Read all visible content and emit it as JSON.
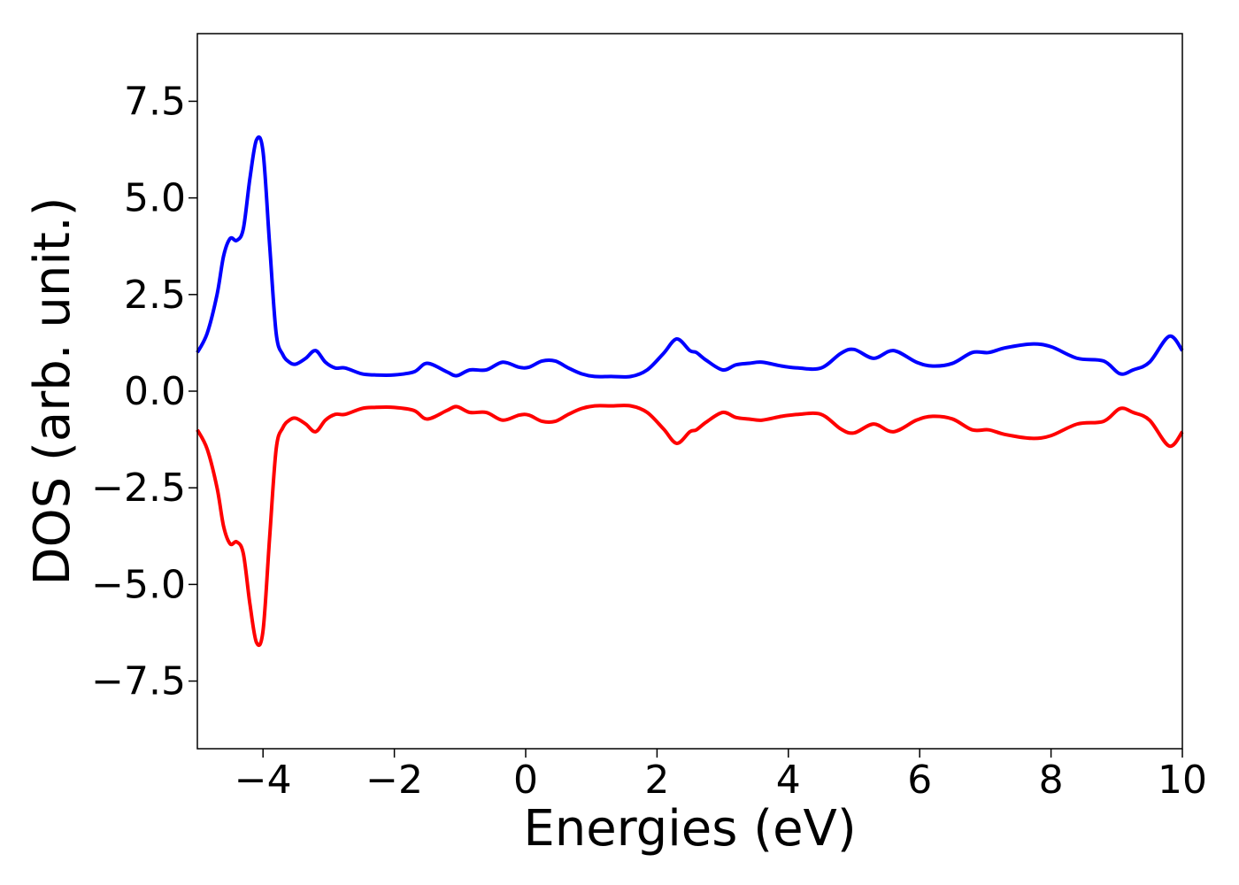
{
  "chart_data": {
    "type": "line",
    "title": "",
    "xlabel": "Energies (eV)",
    "ylabel": "DOS (arb. unit.)",
    "xlim": [
      -5,
      10
    ],
    "ylim": [
      -9.25,
      9.25
    ],
    "xticks": [
      -4,
      -2,
      0,
      2,
      4,
      6,
      8,
      10
    ],
    "xtick_labels": [
      "−4",
      "−2",
      "0",
      "2",
      "4",
      "6",
      "8",
      "10"
    ],
    "yticks": [
      7.5,
      5.0,
      2.5,
      0.0,
      -2.5,
      -5.0,
      -7.5
    ],
    "ytick_labels": [
      "7.5",
      "5.0",
      "2.5",
      "0.0",
      "−2.5",
      "−5.0",
      "−7.5"
    ],
    "grid": false,
    "legend": "none",
    "series": [
      {
        "color": "#0000ff",
        "x": [
          -5.0,
          -4.85,
          -4.7,
          -4.6,
          -4.5,
          -4.4,
          -4.3,
          -4.2,
          -4.1,
          -4.0,
          -3.9,
          -3.8,
          -3.7,
          -3.6,
          -3.5,
          -3.35,
          -3.2,
          -3.05,
          -2.9,
          -2.75,
          -2.5,
          -2.3,
          -2.0,
          -1.7,
          -1.5,
          -1.2,
          -1.05,
          -0.85,
          -0.6,
          -0.35,
          -0.1,
          0.05,
          0.25,
          0.45,
          0.65,
          0.85,
          1.05,
          1.3,
          1.6,
          1.85,
          2.1,
          2.3,
          2.5,
          2.6,
          2.75,
          3.0,
          3.2,
          3.4,
          3.6,
          3.9,
          4.15,
          4.5,
          4.8,
          5.0,
          5.3,
          5.6,
          5.95,
          6.2,
          6.5,
          6.8,
          7.05,
          7.3,
          7.7,
          8.0,
          8.4,
          8.8,
          9.05,
          9.25,
          9.5,
          9.8,
          10.0
        ],
        "y": [
          1.0,
          1.5,
          2.5,
          3.5,
          3.95,
          3.9,
          4.2,
          5.5,
          6.5,
          6.2,
          3.8,
          1.5,
          0.95,
          0.75,
          0.7,
          0.85,
          1.05,
          0.75,
          0.6,
          0.6,
          0.45,
          0.42,
          0.42,
          0.5,
          0.72,
          0.5,
          0.4,
          0.55,
          0.55,
          0.75,
          0.62,
          0.62,
          0.78,
          0.78,
          0.6,
          0.45,
          0.38,
          0.38,
          0.38,
          0.55,
          0.98,
          1.35,
          1.05,
          1.0,
          0.8,
          0.55,
          0.68,
          0.72,
          0.75,
          0.65,
          0.6,
          0.6,
          0.98,
          1.08,
          0.85,
          1.05,
          0.75,
          0.65,
          0.72,
          1.0,
          1.0,
          1.12,
          1.22,
          1.15,
          0.85,
          0.78,
          0.45,
          0.55,
          0.75,
          1.42,
          1.05
        ]
      },
      {
        "color": "#ff0000",
        "x": [
          -5.0,
          -4.85,
          -4.7,
          -4.6,
          -4.5,
          -4.4,
          -4.3,
          -4.2,
          -4.1,
          -4.0,
          -3.9,
          -3.8,
          -3.7,
          -3.6,
          -3.5,
          -3.35,
          -3.2,
          -3.05,
          -2.9,
          -2.75,
          -2.5,
          -2.3,
          -2.0,
          -1.7,
          -1.5,
          -1.2,
          -1.05,
          -0.85,
          -0.6,
          -0.35,
          -0.1,
          0.05,
          0.25,
          0.45,
          0.65,
          0.85,
          1.05,
          1.3,
          1.6,
          1.85,
          2.1,
          2.3,
          2.5,
          2.6,
          2.75,
          3.0,
          3.2,
          3.4,
          3.6,
          3.9,
          4.15,
          4.5,
          4.8,
          5.0,
          5.3,
          5.6,
          5.95,
          6.2,
          6.5,
          6.8,
          7.05,
          7.3,
          7.7,
          8.0,
          8.4,
          8.8,
          9.05,
          9.25,
          9.5,
          9.8,
          10.0
        ],
        "y": [
          -1.0,
          -1.5,
          -2.5,
          -3.5,
          -3.95,
          -3.9,
          -4.2,
          -5.5,
          -6.5,
          -6.2,
          -3.8,
          -1.5,
          -0.95,
          -0.75,
          -0.7,
          -0.85,
          -1.05,
          -0.75,
          -0.6,
          -0.6,
          -0.45,
          -0.42,
          -0.42,
          -0.5,
          -0.72,
          -0.5,
          -0.4,
          -0.55,
          -0.55,
          -0.75,
          -0.62,
          -0.62,
          -0.78,
          -0.78,
          -0.6,
          -0.45,
          -0.38,
          -0.38,
          -0.38,
          -0.55,
          -0.98,
          -1.35,
          -1.05,
          -1.0,
          -0.8,
          -0.55,
          -0.68,
          -0.72,
          -0.75,
          -0.65,
          -0.6,
          -0.6,
          -0.98,
          -1.08,
          -0.85,
          -1.05,
          -0.75,
          -0.65,
          -0.72,
          -1.0,
          -1.0,
          -1.12,
          -1.22,
          -1.15,
          -0.85,
          -0.78,
          -0.45,
          -0.55,
          -0.75,
          -1.42,
          -1.05
        ]
      }
    ]
  }
}
